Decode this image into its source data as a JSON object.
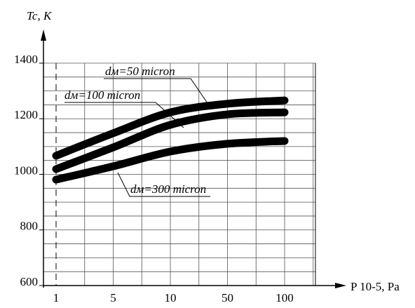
{
  "chart_data": {
    "type": "line",
    "y_label": "Tc, K",
    "x_label": "P 10-5, Pa",
    "categories": [
      "1",
      "5",
      "10",
      "50",
      "100"
    ],
    "series": [
      {
        "name": "dм=50 micron",
        "color": "#000000",
        "values": [
          1067,
          1148,
          1223,
          1254,
          1266
        ]
      },
      {
        "name": "dм=100 micron",
        "color": "#000000",
        "values": [
          1019,
          1097,
          1178,
          1216,
          1223
        ]
      },
      {
        "name": "dм=300 micron",
        "color": "#000000",
        "values": [
          981,
          1029,
          1082,
          1110,
          1120
        ]
      }
    ],
    "ylim": [
      600,
      1400
    ],
    "yticks": [
      600,
      800,
      1000,
      1200,
      1400
    ],
    "ygrid": [
      600,
      650,
      700,
      750,
      800,
      850,
      900,
      950,
      1000,
      1050,
      1100,
      1150,
      1200,
      1250,
      1300,
      1350,
      1400
    ],
    "grid": true
  }
}
